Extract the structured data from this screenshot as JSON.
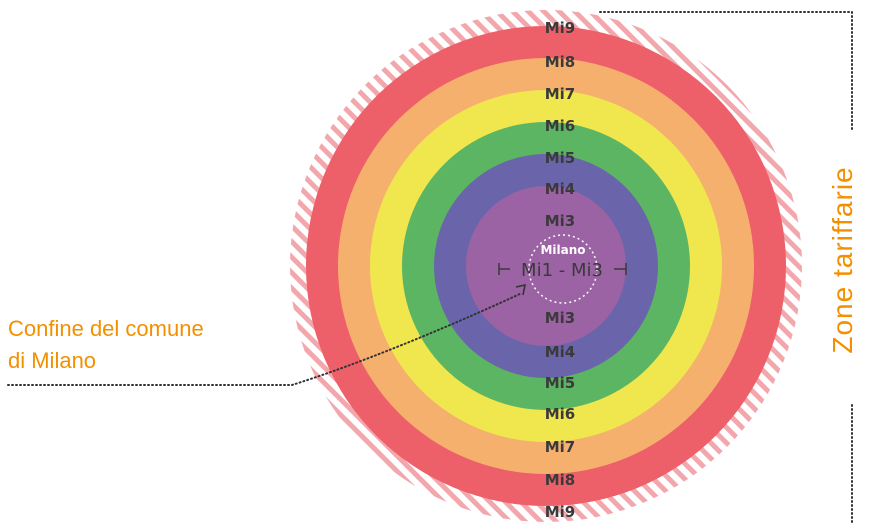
{
  "colors": {
    "mi9_stripe": "#f2a7ad",
    "mi8": "#ee6069",
    "mi7": "#f6b06e",
    "mi6": "#f0e74f",
    "mi5": "#5cb562",
    "mi4": "#6a65aa",
    "mi3": "#9b62a4",
    "accent": "#f29000",
    "dots": "#333333"
  },
  "zones_top": [
    "Mi9",
    "Mi8",
    "Mi7",
    "Mi6",
    "Mi5",
    "Mi4",
    "Mi3"
  ],
  "zones_bottom": [
    "Mi3",
    "Mi4",
    "Mi5",
    "Mi6",
    "Mi7",
    "Mi8",
    "Mi9"
  ],
  "center": {
    "city_label": "Milano",
    "range_label": "Mi1 - Mi3"
  },
  "callout": {
    "line1": "Confine del comune",
    "line2": "di Milano"
  },
  "side_title": "Zone tariffarie"
}
